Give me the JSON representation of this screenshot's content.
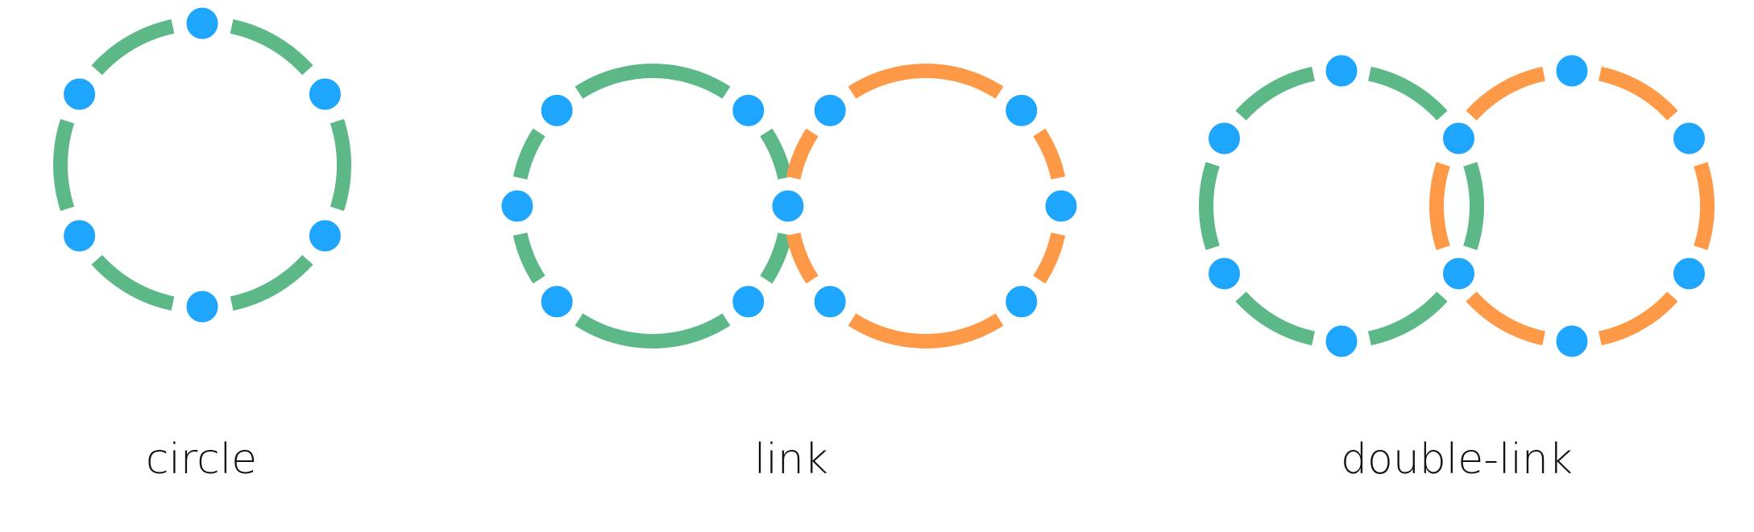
{
  "colors": {
    "ring_green": "#5cb887",
    "ring_orange": "#fe9948",
    "node_blue": "#1ea5fd",
    "node_outline": "#ffffff",
    "background": "#ffffff",
    "caption_text": "#111111"
  },
  "diagrams": [
    {
      "id": "circle",
      "label": "circle",
      "rings": [
        {
          "color_key": "ring_green",
          "node_count": 6
        }
      ],
      "shared_node_count": 0
    },
    {
      "id": "link",
      "label": "link",
      "rings": [
        {
          "color_key": "ring_green",
          "node_count": 6
        },
        {
          "color_key": "ring_orange",
          "node_count": 6
        }
      ],
      "shared_node_count": 1
    },
    {
      "id": "double-link",
      "label": "double-link",
      "rings": [
        {
          "color_key": "ring_green",
          "node_count": 6
        },
        {
          "color_key": "ring_orange",
          "node_count": 6
        }
      ],
      "shared_node_count": 2
    }
  ]
}
